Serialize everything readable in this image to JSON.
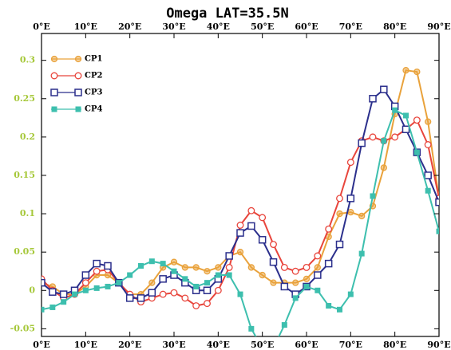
{
  "chart_data": {
    "type": "line",
    "title": "Omega  LAT=35.5N",
    "x": [
      0,
      2.5,
      5,
      7.5,
      10,
      12.5,
      15,
      17.5,
      20,
      22.5,
      25,
      27.5,
      30,
      32.5,
      35,
      37.5,
      40,
      42.5,
      45,
      47.5,
      50,
      52.5,
      55,
      57.5,
      60,
      62.5,
      65,
      67.5,
      70,
      72.5,
      75,
      77.5,
      80,
      82.5,
      85,
      87.5,
      90
    ],
    "xlim": [
      0,
      90
    ],
    "xticks": [
      {
        "value": 0,
        "label": "0°E"
      },
      {
        "value": 10,
        "label": "10°E"
      },
      {
        "value": 20,
        "label": "20°E"
      },
      {
        "value": 30,
        "label": "30°E"
      },
      {
        "value": 40,
        "label": "40°E"
      },
      {
        "value": 50,
        "label": "50°E"
      },
      {
        "value": 60,
        "label": "60°E"
      },
      {
        "value": 70,
        "label": "70°E"
      },
      {
        "value": 80,
        "label": "80°E"
      },
      {
        "value": 90,
        "label": "90°E"
      }
    ],
    "ylim": [
      -0.06,
      0.335
    ],
    "yticks": [
      -0.05,
      0,
      0.05,
      0.1,
      0.15,
      0.2,
      0.25,
      0.3
    ],
    "ytick_color": "#a6c83a",
    "legend": "upper left",
    "series": [
      {
        "name": "CP1",
        "color": "#e9a23b",
        "marker": "cross-circle",
        "values": [
          0.01,
          0.005,
          -0.005,
          -0.005,
          0.005,
          0.02,
          0.02,
          0.01,
          -0.005,
          -0.005,
          0.01,
          0.03,
          0.037,
          0.03,
          0.03,
          0.025,
          0.03,
          0.045,
          0.05,
          0.03,
          0.02,
          0.01,
          0.01,
          0.01,
          0.015,
          0.03,
          0.07,
          0.1,
          0.102,
          0.097,
          0.11,
          0.16,
          0.23,
          0.287,
          0.285,
          0.22,
          0.12
        ]
      },
      {
        "name": "CP2",
        "color": "#e8453c",
        "marker": "open-circle",
        "values": [
          0.015,
          0.0,
          -0.01,
          -0.005,
          0.01,
          0.025,
          0.027,
          0.01,
          -0.005,
          -0.015,
          -0.01,
          -0.005,
          -0.003,
          -0.01,
          -0.02,
          -0.017,
          0.0,
          0.03,
          0.085,
          0.104,
          0.095,
          0.06,
          0.03,
          0.025,
          0.03,
          0.045,
          0.08,
          0.12,
          0.167,
          0.195,
          0.2,
          0.195,
          0.2,
          0.21,
          0.222,
          0.19,
          0.12
        ]
      },
      {
        "name": "CP3",
        "color": "#2b2f8c",
        "marker": "open-square",
        "values": [
          0.01,
          -0.002,
          -0.005,
          0.0,
          0.02,
          0.035,
          0.032,
          0.01,
          -0.01,
          -0.01,
          -0.003,
          0.015,
          0.02,
          0.01,
          0.0,
          0.0,
          0.015,
          0.045,
          0.075,
          0.084,
          0.066,
          0.037,
          0.005,
          -0.005,
          0.005,
          0.02,
          0.035,
          0.06,
          0.12,
          0.192,
          0.25,
          0.262,
          0.24,
          0.21,
          0.18,
          0.15,
          0.115
        ]
      },
      {
        "name": "CP4",
        "color": "#3dbfae",
        "marker": "filled-square",
        "values": [
          -0.025,
          -0.022,
          -0.015,
          -0.005,
          0.0,
          0.003,
          0.005,
          0.01,
          0.02,
          0.032,
          0.038,
          0.035,
          0.025,
          0.015,
          0.005,
          0.01,
          0.02,
          0.02,
          -0.005,
          -0.05,
          -0.075,
          -0.075,
          -0.045,
          -0.01,
          0.005,
          0.0,
          -0.02,
          -0.025,
          -0.005,
          0.048,
          0.123,
          0.195,
          0.235,
          0.228,
          0.18,
          0.13,
          0.077
        ]
      }
    ]
  }
}
